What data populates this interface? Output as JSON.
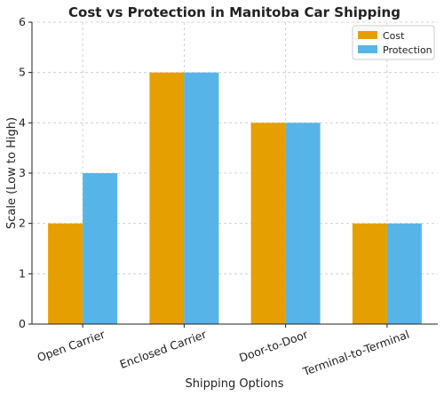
{
  "chart_data": {
    "type": "bar",
    "title": "Cost vs Protection in Manitoba Car Shipping",
    "xlabel": "Shipping Options",
    "ylabel": "Scale (Low to High)",
    "categories": [
      "Open Carrier",
      "Enclosed Carrier",
      "Door-to-Door",
      "Terminal-to-Terminal"
    ],
    "series": [
      {
        "name": "Cost",
        "values": [
          2,
          5,
          4,
          2
        ],
        "color": "#E69F00"
      },
      {
        "name": "Protection",
        "values": [
          3,
          5,
          4,
          2
        ],
        "color": "#56B4E9"
      }
    ],
    "ylim": [
      0,
      6
    ],
    "yticks": [
      0,
      1,
      2,
      3,
      4,
      5,
      6
    ],
    "grid": true,
    "legend_position": "top-right"
  }
}
